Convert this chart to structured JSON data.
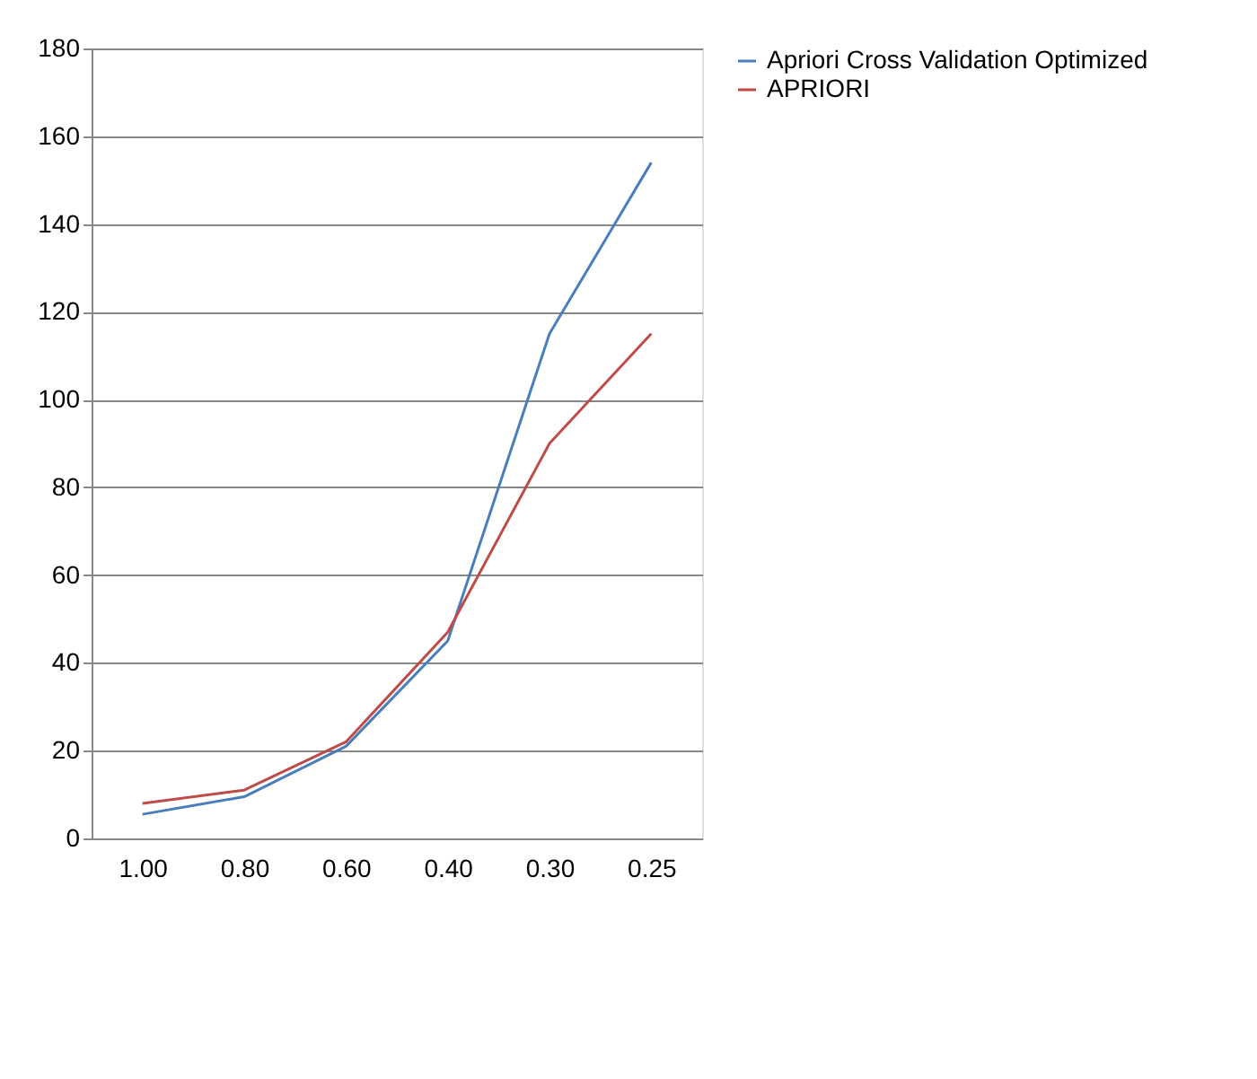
{
  "chart_data": {
    "type": "line",
    "categories": [
      "1.00",
      "0.80",
      "0.60",
      "0.40",
      "0.30",
      "0.25"
    ],
    "series": [
      {
        "name": "Apriori Cross Validation Optimized",
        "color": "#4a7ebb",
        "values": [
          5.5,
          9.5,
          21,
          45,
          115,
          154
        ]
      },
      {
        "name": "APRIORI",
        "color": "#be4b48",
        "values": [
          8,
          11,
          22,
          47,
          90,
          115
        ]
      }
    ],
    "ylim": [
      0,
      180
    ],
    "yticks": [
      0,
      20,
      40,
      60,
      80,
      100,
      120,
      140,
      160,
      180
    ],
    "grid": "y",
    "legend": "right",
    "marker": "none",
    "line_style": "solid"
  }
}
